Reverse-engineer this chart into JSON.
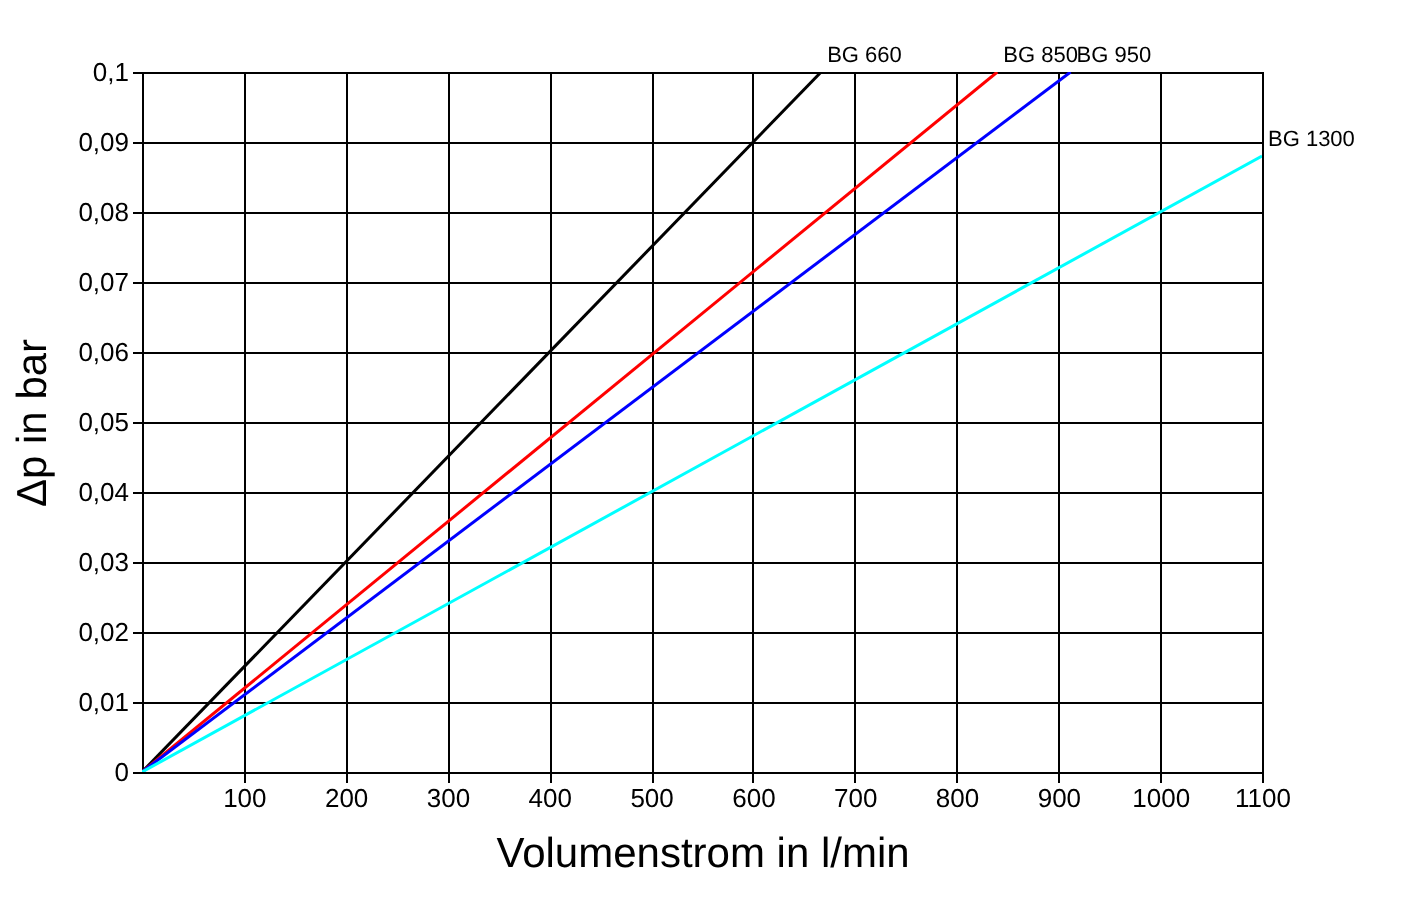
{
  "chart_data": {
    "type": "line",
    "xlabel": "Volumenstrom in l/min",
    "ylabel": "Δp in bar",
    "series": [
      {
        "name": "BG 660",
        "color": "#000000",
        "x": [
          0,
          667
        ],
        "values": [
          0,
          0.1
        ]
      },
      {
        "name": "BG 850",
        "color": "#ff0000",
        "x": [
          0,
          840
        ],
        "values": [
          0,
          0.1
        ]
      },
      {
        "name": "BG 950",
        "color": "#0000ff",
        "x": [
          0,
          912
        ],
        "values": [
          0,
          0.1
        ]
      },
      {
        "name": "BG 1300",
        "color": "#00ffff",
        "x": [
          0,
          1100
        ],
        "values": [
          0,
          0.088
        ]
      }
    ],
    "xlim": [
      0,
      1100
    ],
    "xticks": [
      100,
      200,
      300,
      400,
      500,
      600,
      700,
      800,
      900,
      1000,
      1100
    ],
    "ylim": [
      0,
      0.1
    ],
    "yticks": [
      0,
      {
        "value": 0.01,
        "label": "0,01"
      },
      {
        "value": 0.02,
        "label": "0,02"
      },
      {
        "value": 0.03,
        "label": "0,03"
      },
      {
        "value": 0.04,
        "label": "0,04"
      },
      {
        "value": 0.05,
        "label": "0,05"
      },
      {
        "value": 0.06,
        "label": "0,06"
      },
      {
        "value": 0.07,
        "label": "0,07"
      },
      {
        "value": 0.08,
        "label": "0,08"
      },
      {
        "value": 0.09,
        "label": "0,09"
      },
      {
        "value": 0.1,
        "label": "0,1"
      }
    ],
    "grid": true,
    "legend": false,
    "marker": "none",
    "line_style": "solid"
  }
}
